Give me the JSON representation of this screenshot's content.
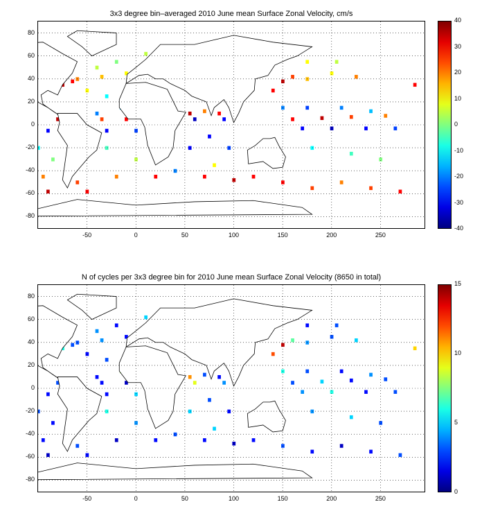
{
  "chart_data": [
    {
      "type": "heatmap",
      "title": "3x3 degree bin–averaged 2010 June mean Surface Zonal Velocity, cm/s",
      "xlabel": "",
      "ylabel": "",
      "xlim": [
        -100,
        295
      ],
      "ylim": [
        -90,
        90
      ],
      "xticks": [
        -50,
        0,
        50,
        100,
        150,
        200,
        250
      ],
      "yticks": [
        80,
        60,
        40,
        20,
        0,
        -20,
        -40,
        -60,
        -80
      ],
      "grid": true,
      "colormap": "jet",
      "clim": [
        -40,
        40
      ],
      "colorbar_ticks": [
        40,
        30,
        20,
        10,
        0,
        -10,
        -20,
        -30,
        -40
      ],
      "bins": [
        {
          "x": -40,
          "y": 50,
          "v": 5
        },
        {
          "x": -20,
          "y": 55,
          "v": 0
        },
        {
          "x": 10,
          "y": 62,
          "v": 5
        },
        {
          "x": -60,
          "y": 40,
          "v": 20
        },
        {
          "x": -35,
          "y": 42,
          "v": 15
        },
        {
          "x": -10,
          "y": 45,
          "v": 10
        },
        {
          "x": -75,
          "y": 35,
          "v": 35
        },
        {
          "x": -65,
          "y": 38,
          "v": 30
        },
        {
          "x": -50,
          "y": 30,
          "v": 10
        },
        {
          "x": -30,
          "y": 25,
          "v": -10
        },
        {
          "x": -15,
          "y": 15,
          "v": -15
        },
        {
          "x": -40,
          "y": 10,
          "v": -20
        },
        {
          "x": -80,
          "y": 5,
          "v": 35
        },
        {
          "x": -60,
          "y": 5,
          "v": 30
        },
        {
          "x": -35,
          "y": 5,
          "v": 25
        },
        {
          "x": -10,
          "y": 5,
          "v": 30
        },
        {
          "x": -90,
          "y": -5,
          "v": -30
        },
        {
          "x": -70,
          "y": -5,
          "v": -25
        },
        {
          "x": -30,
          "y": -5,
          "v": -30
        },
        {
          "x": 0,
          "y": -5,
          "v": -25
        },
        {
          "x": -100,
          "y": -20,
          "v": -10
        },
        {
          "x": -85,
          "y": -30,
          "v": 0
        },
        {
          "x": -30,
          "y": -20,
          "v": -5
        },
        {
          "x": 0,
          "y": -30,
          "v": 5
        },
        {
          "x": -95,
          "y": -45,
          "v": 20
        },
        {
          "x": -60,
          "y": -50,
          "v": 25
        },
        {
          "x": -20,
          "y": -45,
          "v": 20
        },
        {
          "x": 20,
          "y": -45,
          "v": 30
        },
        {
          "x": -90,
          "y": -58,
          "v": 35
        },
        {
          "x": -50,
          "y": -58,
          "v": 30
        },
        {
          "x": 40,
          "y": -40,
          "v": -20
        },
        {
          "x": 55,
          "y": -20,
          "v": -30
        },
        {
          "x": 60,
          "y": 5,
          "v": -35
        },
        {
          "x": 55,
          "y": 10,
          "v": 35
        },
        {
          "x": 70,
          "y": 12,
          "v": 20
        },
        {
          "x": 85,
          "y": 10,
          "v": 30
        },
        {
          "x": 90,
          "y": 5,
          "v": -30
        },
        {
          "x": 75,
          "y": -10,
          "v": -30
        },
        {
          "x": 95,
          "y": -20,
          "v": -25
        },
        {
          "x": 80,
          "y": -35,
          "v": 10
        },
        {
          "x": 70,
          "y": -45,
          "v": 30
        },
        {
          "x": 100,
          "y": -48,
          "v": 35
        },
        {
          "x": 120,
          "y": -45,
          "v": 30
        },
        {
          "x": 150,
          "y": -50,
          "v": 30
        },
        {
          "x": 180,
          "y": -55,
          "v": 25
        },
        {
          "x": 210,
          "y": -50,
          "v": 20
        },
        {
          "x": 240,
          "y": -55,
          "v": 25
        },
        {
          "x": 270,
          "y": -58,
          "v": 30
        },
        {
          "x": 140,
          "y": 30,
          "v": 30
        },
        {
          "x": 150,
          "y": 38,
          "v": 35
        },
        {
          "x": 160,
          "y": 42,
          "v": 25
        },
        {
          "x": 175,
          "y": 40,
          "v": 15
        },
        {
          "x": 200,
          "y": 45,
          "v": 10
        },
        {
          "x": 225,
          "y": 42,
          "v": 20
        },
        {
          "x": 150,
          "y": 15,
          "v": -20
        },
        {
          "x": 175,
          "y": 15,
          "v": -25
        },
        {
          "x": 210,
          "y": 15,
          "v": -20
        },
        {
          "x": 240,
          "y": 12,
          "v": -15
        },
        {
          "x": 160,
          "y": 5,
          "v": 30
        },
        {
          "x": 190,
          "y": 6,
          "v": 35
        },
        {
          "x": 220,
          "y": 7,
          "v": 25
        },
        {
          "x": 255,
          "y": 8,
          "v": 20
        },
        {
          "x": 170,
          "y": -3,
          "v": -30
        },
        {
          "x": 200,
          "y": -3,
          "v": -35
        },
        {
          "x": 235,
          "y": -3,
          "v": -30
        },
        {
          "x": 265,
          "y": -3,
          "v": -25
        },
        {
          "x": 180,
          "y": -20,
          "v": -10
        },
        {
          "x": 220,
          "y": -25,
          "v": -5
        },
        {
          "x": 250,
          "y": -30,
          "v": 0
        },
        {
          "x": 175,
          "y": 55,
          "v": 10
        },
        {
          "x": 205,
          "y": 55,
          "v": 5
        },
        {
          "x": 285,
          "y": 35,
          "v": 30
        }
      ]
    },
    {
      "type": "heatmap",
      "title": "N of cycles per 3x3 degree bin for 2010 June mean Surface Zonal Velocity (8650 in total)",
      "xlabel": "",
      "ylabel": "",
      "xlim": [
        -100,
        295
      ],
      "ylim": [
        -90,
        90
      ],
      "xticks": [
        -50,
        0,
        50,
        100,
        150,
        200,
        250
      ],
      "yticks": [
        80,
        60,
        40,
        20,
        0,
        -20,
        -40,
        -60,
        -80
      ],
      "grid": true,
      "colormap": "jet",
      "clim": [
        0,
        15
      ],
      "colorbar_ticks": [
        15,
        10,
        5,
        0
      ],
      "total": 8650,
      "bins": [
        {
          "x": -40,
          "y": 50,
          "v": 4
        },
        {
          "x": -20,
          "y": 55,
          "v": 2
        },
        {
          "x": 10,
          "y": 62,
          "v": 5
        },
        {
          "x": -60,
          "y": 40,
          "v": 3
        },
        {
          "x": -35,
          "y": 42,
          "v": 4
        },
        {
          "x": -10,
          "y": 45,
          "v": 2
        },
        {
          "x": -75,
          "y": 35,
          "v": 6
        },
        {
          "x": -65,
          "y": 38,
          "v": 3
        },
        {
          "x": -50,
          "y": 30,
          "v": 2
        },
        {
          "x": -30,
          "y": 25,
          "v": 3
        },
        {
          "x": -15,
          "y": 15,
          "v": 8
        },
        {
          "x": -40,
          "y": 10,
          "v": 2
        },
        {
          "x": -80,
          "y": 5,
          "v": 3
        },
        {
          "x": -60,
          "y": 5,
          "v": 4
        },
        {
          "x": -35,
          "y": 5,
          "v": 2
        },
        {
          "x": -10,
          "y": 5,
          "v": 1
        },
        {
          "x": -90,
          "y": -5,
          "v": 2
        },
        {
          "x": -70,
          "y": -5,
          "v": 3
        },
        {
          "x": -30,
          "y": -5,
          "v": 2
        },
        {
          "x": 0,
          "y": -5,
          "v": 5
        },
        {
          "x": -100,
          "y": -20,
          "v": 3
        },
        {
          "x": -85,
          "y": -30,
          "v": 2
        },
        {
          "x": -30,
          "y": -20,
          "v": 6
        },
        {
          "x": 0,
          "y": -30,
          "v": 4
        },
        {
          "x": -95,
          "y": -45,
          "v": 2
        },
        {
          "x": -60,
          "y": -50,
          "v": 3
        },
        {
          "x": -20,
          "y": -45,
          "v": 1
        },
        {
          "x": 20,
          "y": -45,
          "v": 2
        },
        {
          "x": -90,
          "y": -58,
          "v": 1
        },
        {
          "x": -50,
          "y": -58,
          "v": 2
        },
        {
          "x": 40,
          "y": -40,
          "v": 3
        },
        {
          "x": 55,
          "y": -20,
          "v": 5
        },
        {
          "x": 60,
          "y": 5,
          "v": 9
        },
        {
          "x": 55,
          "y": 10,
          "v": 11
        },
        {
          "x": 70,
          "y": 12,
          "v": 3
        },
        {
          "x": 85,
          "y": 10,
          "v": 2
        },
        {
          "x": 90,
          "y": 5,
          "v": 4
        },
        {
          "x": 75,
          "y": -10,
          "v": 3
        },
        {
          "x": 95,
          "y": -20,
          "v": 2
        },
        {
          "x": 80,
          "y": -35,
          "v": 5
        },
        {
          "x": 70,
          "y": -45,
          "v": 2
        },
        {
          "x": 100,
          "y": -48,
          "v": 1
        },
        {
          "x": 120,
          "y": -45,
          "v": 2
        },
        {
          "x": 150,
          "y": -50,
          "v": 3
        },
        {
          "x": 180,
          "y": -55,
          "v": 2
        },
        {
          "x": 210,
          "y": -50,
          "v": 1
        },
        {
          "x": 240,
          "y": -55,
          "v": 2
        },
        {
          "x": 270,
          "y": -58,
          "v": 3
        },
        {
          "x": 140,
          "y": 30,
          "v": 12
        },
        {
          "x": 150,
          "y": 38,
          "v": 14
        },
        {
          "x": 160,
          "y": 42,
          "v": 7
        },
        {
          "x": 175,
          "y": 40,
          "v": 4
        },
        {
          "x": 200,
          "y": 45,
          "v": 3
        },
        {
          "x": 225,
          "y": 42,
          "v": 5
        },
        {
          "x": 150,
          "y": 15,
          "v": 6
        },
        {
          "x": 175,
          "y": 15,
          "v": 3
        },
        {
          "x": 210,
          "y": 15,
          "v": 2
        },
        {
          "x": 240,
          "y": 12,
          "v": 4
        },
        {
          "x": 160,
          "y": 5,
          "v": 3
        },
        {
          "x": 190,
          "y": 6,
          "v": 5
        },
        {
          "x": 220,
          "y": 7,
          "v": 2
        },
        {
          "x": 255,
          "y": 8,
          "v": 3
        },
        {
          "x": 170,
          "y": -3,
          "v": 4
        },
        {
          "x": 200,
          "y": -3,
          "v": 6
        },
        {
          "x": 235,
          "y": -3,
          "v": 2
        },
        {
          "x": 265,
          "y": -3,
          "v": 3
        },
        {
          "x": 180,
          "y": -20,
          "v": 4
        },
        {
          "x": 220,
          "y": -25,
          "v": 5
        },
        {
          "x": 250,
          "y": -30,
          "v": 3
        },
        {
          "x": 175,
          "y": 55,
          "v": 2
        },
        {
          "x": 205,
          "y": 55,
          "v": 3
        },
        {
          "x": 285,
          "y": 35,
          "v": 10
        }
      ]
    }
  ]
}
